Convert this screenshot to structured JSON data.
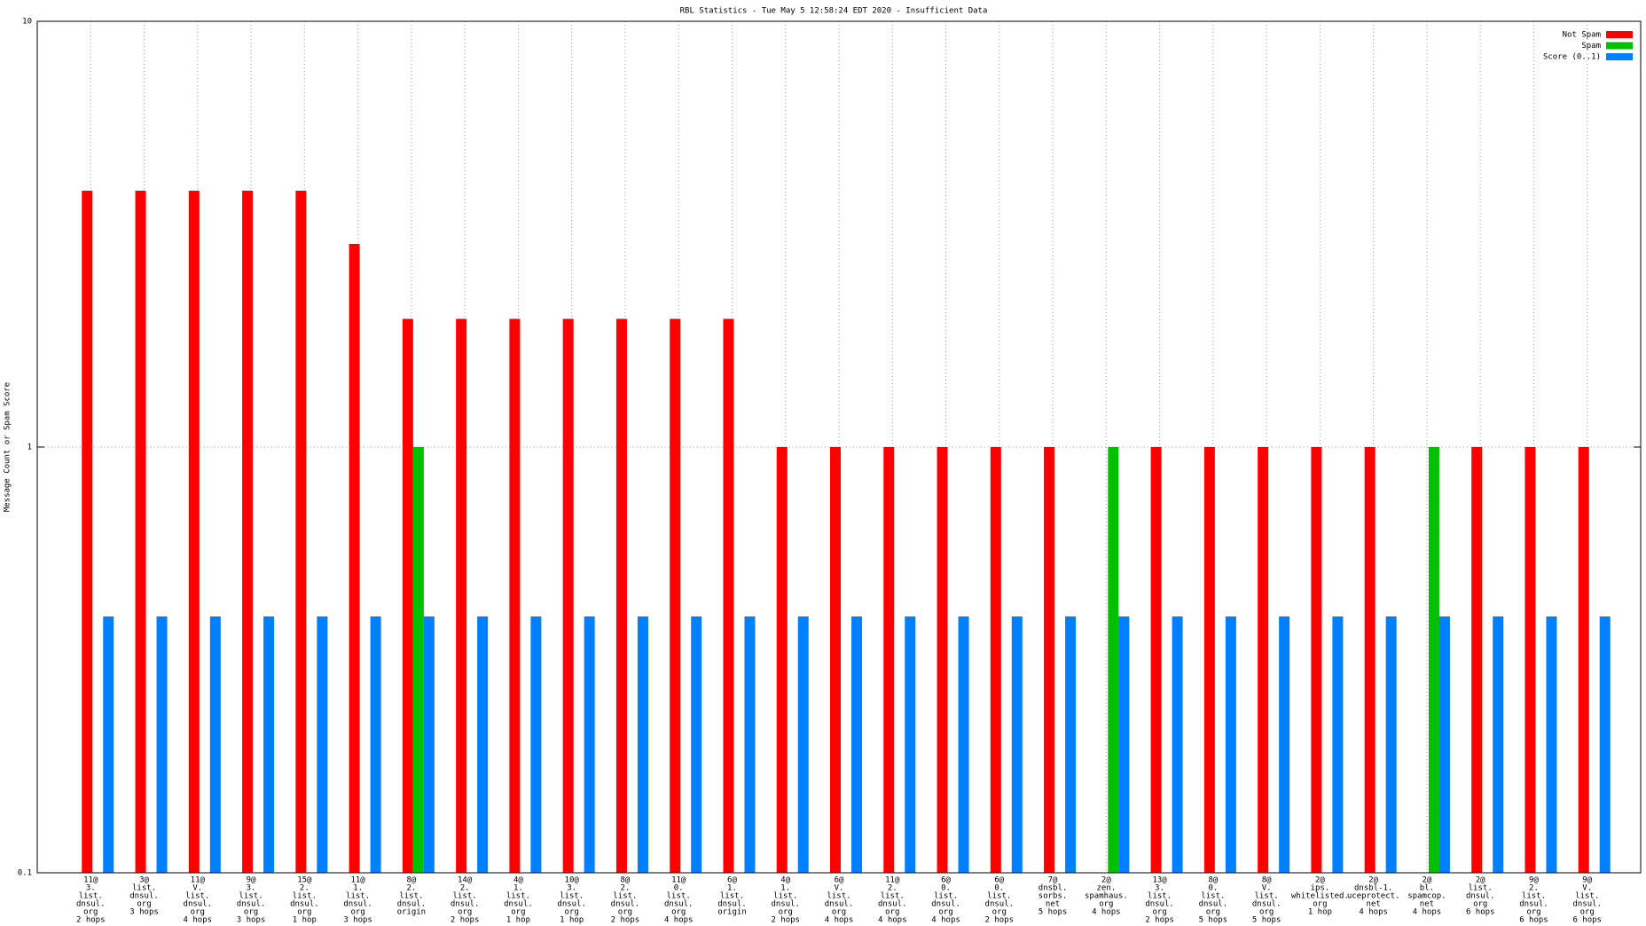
{
  "chart_data": {
    "type": "bar",
    "title": "RBL Statistics - Tue May  5 12:58:24 EDT 2020 - Insufficient Data",
    "y_label": "Message Count or Spam Score",
    "log_y": true,
    "grid": true,
    "legend": "top-right",
    "ylim": [
      0.1,
      10
    ],
    "yticks": [
      0.1,
      1,
      10
    ],
    "categories": [
      [
        "11@",
        "3.",
        "list.",
        "dnsul.",
        "org",
        "2 hops"
      ],
      [
        "3@",
        "list.",
        "dnsul.",
        "org",
        "3 hops"
      ],
      [
        "11@",
        "V.",
        "list.",
        "dnsul.",
        "org",
        "4 hops"
      ],
      [
        "9@",
        "3.",
        "list.",
        "dnsul.",
        "org",
        "3 hops"
      ],
      [
        "15@",
        "2.",
        "list.",
        "dnsul.",
        "org",
        "1 hop"
      ],
      [
        "11@",
        "1.",
        "list.",
        "dnsul.",
        "org",
        "3 hops"
      ],
      [
        "8@",
        "2.",
        "list.",
        "dnsul.",
        "origin"
      ],
      [
        "14@",
        "2.",
        "list.",
        "dnsul.",
        "org",
        "2 hops"
      ],
      [
        "4@",
        "1.",
        "list.",
        "dnsul.",
        "org",
        "1 hop"
      ],
      [
        "10@",
        "3.",
        "list.",
        "dnsul.",
        "org",
        "1 hop"
      ],
      [
        "8@",
        "2.",
        "list.",
        "dnsul.",
        "org",
        "2 hops"
      ],
      [
        "11@",
        "0.",
        "list.",
        "dnsul.",
        "org",
        "4 hops"
      ],
      [
        "6@",
        "1.",
        "list.",
        "dnsul.",
        "origin"
      ],
      [
        "4@",
        "1.",
        "list.",
        "dnsul.",
        "org",
        "2 hops"
      ],
      [
        "6@",
        "V.",
        "list.",
        "dnsul.",
        "org",
        "4 hops"
      ],
      [
        "11@",
        "2.",
        "list.",
        "dnsul.",
        "org",
        "4 hops"
      ],
      [
        "6@",
        "0.",
        "list.",
        "dnsul.",
        "org",
        "4 hops"
      ],
      [
        "6@",
        "0.",
        "list.",
        "dnsul.",
        "org",
        "2 hops"
      ],
      [
        "7@",
        "dnsbl.",
        "sorbs.",
        "net",
        "5 hops"
      ],
      [
        "2@",
        "zen.",
        "spamhaus.",
        "org",
        "4 hops"
      ],
      [
        "13@",
        "3.",
        "list.",
        "dnsul.",
        "org",
        "2 hops"
      ],
      [
        "8@",
        "0.",
        "list.",
        "dnsul.",
        "org",
        "5 hops"
      ],
      [
        "8@",
        "V.",
        "list.",
        "dnsul.",
        "org",
        "5 hops"
      ],
      [
        "2@",
        "ips.",
        "whitelisted.",
        "org",
        "1 hop"
      ],
      [
        "2@",
        "dnsbl-1.",
        "uceprotect.",
        "net",
        "4 hops"
      ],
      [
        "2@",
        "bl.",
        "spamcop.",
        "net",
        "4 hops"
      ],
      [
        "2@",
        "list.",
        "dnsul.",
        "org",
        "6 hops"
      ],
      [
        "9@",
        "2.",
        "list.",
        "dnsul.",
        "org",
        "6 hops"
      ],
      [
        "9@",
        "V.",
        "list.",
        "dnsul.",
        "org",
        "6 hops"
      ]
    ],
    "series": [
      {
        "name": "Not Spam",
        "color": "#ff0000",
        "values": [
          4,
          4,
          4,
          4,
          4,
          3,
          2,
          2,
          2,
          2,
          2,
          2,
          2,
          1,
          1,
          1,
          1,
          1,
          1,
          null,
          1,
          1,
          1,
          1,
          1,
          null,
          1,
          1,
          1
        ]
      },
      {
        "name": "Spam",
        "color": "#00c000",
        "values": [
          null,
          null,
          null,
          null,
          null,
          null,
          1,
          null,
          null,
          null,
          null,
          null,
          null,
          null,
          null,
          null,
          null,
          null,
          null,
          1,
          null,
          null,
          null,
          null,
          null,
          1,
          null,
          null,
          null
        ]
      },
      {
        "name": "Score (0..1)",
        "color": "#0080ff",
        "values": [
          0.4,
          0.4,
          0.4,
          0.4,
          0.4,
          0.4,
          0.4,
          0.4,
          0.4,
          0.4,
          0.4,
          0.4,
          0.4,
          0.4,
          0.4,
          0.4,
          0.4,
          0.4,
          0.4,
          0.4,
          0.4,
          0.4,
          0.4,
          0.4,
          0.4,
          0.4,
          0.4,
          0.4,
          0.4
        ]
      }
    ]
  }
}
